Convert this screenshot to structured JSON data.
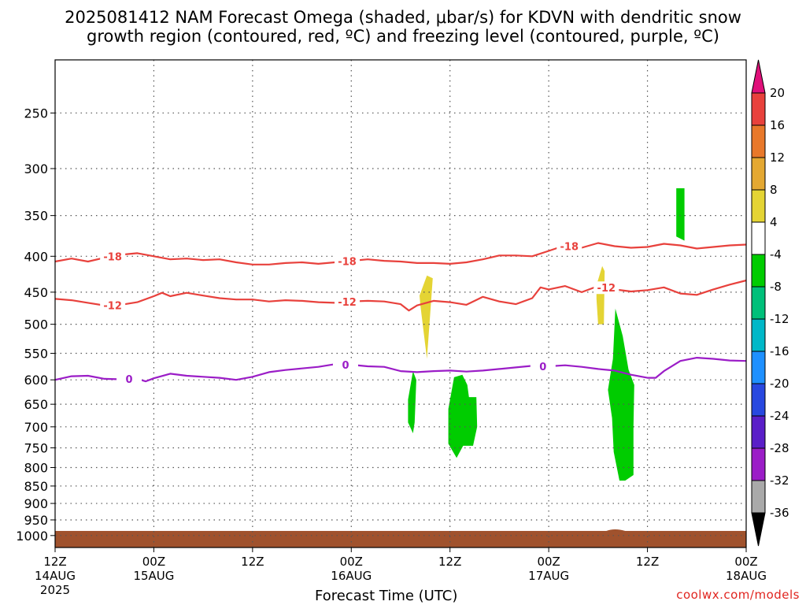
{
  "title": {
    "line1": "2025081412 NAM Forecast Omega (shaded, μbar/s) for KDVN with dendritic snow",
    "line2": "growth region (contoured, red, ºC) and freezing level (contoured, purple, ºC)"
  },
  "footer": {
    "xlabel": "Forecast Time (UTC)",
    "credit": "coolwx.com/models"
  },
  "chart_data": {
    "type": "heatmap",
    "y_axis": {
      "quantity": "pressure (hPa)",
      "scale": "log",
      "range": [
        210,
        1040
      ],
      "ticks": [
        250,
        300,
        350,
        400,
        450,
        500,
        550,
        600,
        650,
        700,
        750,
        800,
        850,
        900,
        950,
        1000
      ]
    },
    "x_axis": {
      "quantity": "forecast hour",
      "range": [
        0,
        84
      ],
      "ticks": [
        {
          "hour": 0,
          "lines": [
            "12Z",
            "14AUG",
            "2025"
          ]
        },
        {
          "hour": 12,
          "lines": [
            "00Z",
            "15AUG"
          ]
        },
        {
          "hour": 24,
          "lines": [
            "12Z"
          ]
        },
        {
          "hour": 36,
          "lines": [
            "00Z",
            "16AUG"
          ]
        },
        {
          "hour": 48,
          "lines": [
            "12Z"
          ]
        },
        {
          "hour": 60,
          "lines": [
            "00Z",
            "17AUG"
          ]
        },
        {
          "hour": 72,
          "lines": [
            "12Z"
          ]
        },
        {
          "hour": 84,
          "lines": [
            "00Z",
            "18AUG"
          ]
        }
      ]
    },
    "grid": true,
    "ground": {
      "color": "#a0522d",
      "top_pressure": 985
    },
    "contours": [
      {
        "level": -18,
        "color": "#e8413c",
        "label": "-18",
        "points": [
          [
            0,
            407
          ],
          [
            2,
            403
          ],
          [
            4,
            407
          ],
          [
            6,
            402
          ],
          [
            8,
            398
          ],
          [
            10,
            396
          ],
          [
            12,
            400
          ],
          [
            14,
            404
          ],
          [
            16,
            403
          ],
          [
            18,
            405
          ],
          [
            20,
            404
          ],
          [
            22,
            408
          ],
          [
            24,
            411
          ],
          [
            26,
            411
          ],
          [
            28,
            409
          ],
          [
            30,
            408
          ],
          [
            32,
            410
          ],
          [
            34,
            408
          ],
          [
            36,
            406
          ],
          [
            38,
            404
          ],
          [
            40,
            406
          ],
          [
            42,
            407
          ],
          [
            44,
            409
          ],
          [
            46,
            409
          ],
          [
            48,
            410
          ],
          [
            50,
            408
          ],
          [
            52,
            404
          ],
          [
            54,
            399
          ],
          [
            56,
            399
          ],
          [
            58,
            400
          ],
          [
            60,
            393
          ],
          [
            62,
            386
          ],
          [
            64,
            389
          ],
          [
            66,
            383
          ],
          [
            68,
            387
          ],
          [
            70,
            389
          ],
          [
            72,
            388
          ],
          [
            74,
            384
          ],
          [
            76,
            386
          ],
          [
            78,
            390
          ],
          [
            80,
            388
          ],
          [
            82,
            386
          ],
          [
            84,
            385
          ]
        ],
        "labels_at": [
          7,
          35.5,
          62.5
        ]
      },
      {
        "level": -12,
        "color": "#e8413c",
        "label": "-12",
        "points": [
          [
            0,
            460
          ],
          [
            2,
            462
          ],
          [
            4,
            466
          ],
          [
            6,
            470
          ],
          [
            8,
            469
          ],
          [
            10,
            465
          ],
          [
            12,
            456
          ],
          [
            13,
            451
          ],
          [
            14,
            456
          ],
          [
            16,
            451
          ],
          [
            18,
            455
          ],
          [
            20,
            459
          ],
          [
            22,
            461
          ],
          [
            24,
            461
          ],
          [
            26,
            464
          ],
          [
            28,
            462
          ],
          [
            30,
            463
          ],
          [
            32,
            465
          ],
          [
            34,
            466
          ],
          [
            36,
            464
          ],
          [
            38,
            463
          ],
          [
            40,
            464
          ],
          [
            42,
            468
          ],
          [
            43,
            478
          ],
          [
            44,
            470
          ],
          [
            46,
            463
          ],
          [
            48,
            465
          ],
          [
            50,
            469
          ],
          [
            52,
            457
          ],
          [
            54,
            464
          ],
          [
            56,
            468
          ],
          [
            58,
            459
          ],
          [
            59,
            443
          ],
          [
            60,
            446
          ],
          [
            62,
            441
          ],
          [
            64,
            450
          ],
          [
            66,
            441
          ],
          [
            68,
            446
          ],
          [
            70,
            449
          ],
          [
            72,
            447
          ],
          [
            74,
            443
          ],
          [
            76,
            452
          ],
          [
            78,
            454
          ],
          [
            80,
            446
          ],
          [
            82,
            439
          ],
          [
            84,
            433
          ]
        ],
        "labels_at": [
          7,
          35.5,
          67
        ]
      },
      {
        "level": 0,
        "color": "#9b1dc7",
        "label": "0",
        "points": [
          [
            0,
            600
          ],
          [
            2,
            593
          ],
          [
            4,
            592
          ],
          [
            6,
            598
          ],
          [
            8,
            599
          ],
          [
            10,
            598
          ],
          [
            11,
            603
          ],
          [
            12,
            597
          ],
          [
            14,
            588
          ],
          [
            16,
            592
          ],
          [
            18,
            594
          ],
          [
            20,
            596
          ],
          [
            22,
            600
          ],
          [
            24,
            594
          ],
          [
            26,
            585
          ],
          [
            28,
            581
          ],
          [
            30,
            578
          ],
          [
            32,
            575
          ],
          [
            34,
            570
          ],
          [
            36,
            571
          ],
          [
            38,
            574
          ],
          [
            40,
            575
          ],
          [
            42,
            583
          ],
          [
            44,
            585
          ],
          [
            46,
            583
          ],
          [
            48,
            582
          ],
          [
            50,
            584
          ],
          [
            52,
            582
          ],
          [
            54,
            579
          ],
          [
            56,
            576
          ],
          [
            58,
            573
          ],
          [
            60,
            574
          ],
          [
            62,
            572
          ],
          [
            64,
            575
          ],
          [
            66,
            579
          ],
          [
            68,
            582
          ],
          [
            70,
            590
          ],
          [
            72,
            596
          ],
          [
            73,
            596
          ],
          [
            74,
            583
          ],
          [
            76,
            564
          ],
          [
            78,
            558
          ],
          [
            80,
            560
          ],
          [
            82,
            563
          ],
          [
            84,
            564
          ]
        ],
        "labels_at": [
          9,
          35.3,
          59.3
        ]
      }
    ],
    "shaded_regions": [
      {
        "name": "yellow-cell-1",
        "range": "4 to 8",
        "color": "#e4d434",
        "polygon": [
          [
            44.3,
            455
          ],
          [
            45.2,
            426
          ],
          [
            45.9,
            430
          ],
          [
            45.5,
            500
          ],
          [
            45.2,
            560
          ],
          [
            44.4,
            470
          ]
        ]
      },
      {
        "name": "yellow-cell-2",
        "range": "4 to 8",
        "color": "#e4d434",
        "polygon": [
          [
            65.8,
            440
          ],
          [
            66.5,
            413
          ],
          [
            66.8,
            420
          ],
          [
            66.7,
            500
          ],
          [
            66.0,
            500
          ],
          [
            65.8,
            460
          ]
        ]
      },
      {
        "name": "green-cell-1",
        "range": "-8 to -4",
        "color": "#00cc00",
        "polygon": [
          [
            42.9,
            640
          ],
          [
            43.5,
            583
          ],
          [
            43.9,
            600
          ],
          [
            43.7,
            690
          ],
          [
            43.5,
            715
          ],
          [
            42.9,
            690
          ]
        ]
      },
      {
        "name": "green-cell-2",
        "range": "-8 to -4",
        "color": "#00cc00",
        "polygon": [
          [
            47.8,
            660
          ],
          [
            48.5,
            595
          ],
          [
            49.5,
            590
          ],
          [
            50.1,
            610
          ],
          [
            50.3,
            635
          ],
          [
            51.2,
            635
          ],
          [
            51.3,
            700
          ],
          [
            50.8,
            745
          ],
          [
            49.6,
            745
          ],
          [
            48.8,
            775
          ],
          [
            47.8,
            740
          ]
        ]
      },
      {
        "name": "green-cell-3",
        "range": "-8 to -4",
        "color": "#00cc00",
        "polygon": [
          [
            67.2,
            620
          ],
          [
            67.8,
            560
          ],
          [
            68.1,
            475
          ],
          [
            69.0,
            520
          ],
          [
            69.7,
            580
          ],
          [
            70.4,
            610
          ],
          [
            70.3,
            700
          ],
          [
            70.3,
            820
          ],
          [
            69.3,
            835
          ],
          [
            68.6,
            835
          ],
          [
            67.9,
            760
          ],
          [
            67.7,
            680
          ]
        ]
      },
      {
        "name": "green-cell-4",
        "range": "-8 to -4",
        "color": "#00cc00",
        "polygon": [
          [
            75.5,
            320
          ],
          [
            76.5,
            320
          ],
          [
            76.5,
            380
          ],
          [
            75.5,
            375
          ]
        ]
      }
    ],
    "colorbar": {
      "labels": [
        "20",
        "16",
        "12",
        "8",
        "4",
        "-4",
        "-8",
        "-12",
        "-16",
        "-20",
        "-24",
        "-28",
        "-32",
        "-36"
      ],
      "bins": [
        {
          "range": "> 20",
          "color": "#e0107a"
        },
        {
          "range": "16 to 20",
          "color": "#e8413c"
        },
        {
          "range": "12 to 16",
          "color": "#e8782a"
        },
        {
          "range": "8 to 12",
          "color": "#e4a832"
        },
        {
          "range": "4 to 8",
          "color": "#e4d434"
        },
        {
          "range": "-4 to 4",
          "color": "#ffffff"
        },
        {
          "range": "-8 to -4",
          "color": "#00cc00"
        },
        {
          "range": "-12 to -8",
          "color": "#00c07a"
        },
        {
          "range": "-16 to -12",
          "color": "#00b8c8"
        },
        {
          "range": "-20 to -16",
          "color": "#1e90ff"
        },
        {
          "range": "-24 to -20",
          "color": "#2848e0"
        },
        {
          "range": "-28 to -24",
          "color": "#5a1ec8"
        },
        {
          "range": "-32 to -28",
          "color": "#9b1dc7"
        },
        {
          "range": "-36 to -32",
          "color": "#a9a9a9"
        },
        {
          "range": "< -36",
          "color": "#000000"
        }
      ]
    }
  }
}
